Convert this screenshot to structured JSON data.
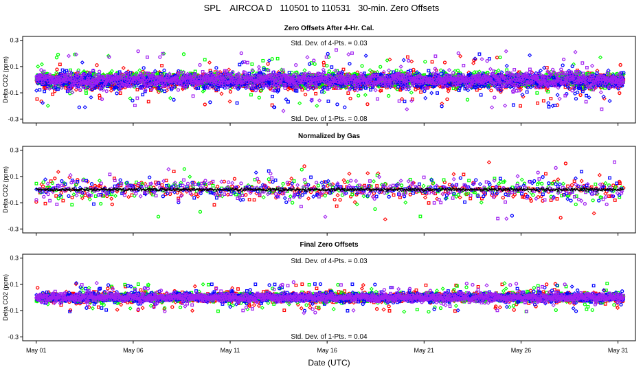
{
  "figure_title": "SPL    AIRCOA D   110501 to 110531   30-min. Zero Offsets",
  "colors": {
    "red": "#ff0000",
    "green": "#00ff00",
    "blue": "#0000ff",
    "violet": "#a020f0",
    "black": "#000000"
  },
  "chart_data": [
    {
      "type": "scatter",
      "title": "Zero Offsets After 4-Hr. Cal.",
      "xlabel": "",
      "ylabel": "Delta CO2 (ppm)",
      "xlim": [
        0.3,
        31.9
      ],
      "ylim": [
        -0.33,
        0.33
      ],
      "yticks": [
        -0.3,
        -0.1,
        0.1,
        0.3
      ],
      "yticklabels": [
        "-0.3",
        "-0.1",
        "0.1",
        "0.3"
      ],
      "annotation_top": "Std. Dev. of 4-Pts. =  0.03",
      "annotation_bottom": "Std. Dev. of 1-Pts. =  0.08",
      "series": [
        {
          "name": "red",
          "color": "#ff0000",
          "center": -0.01,
          "spread": 0.055,
          "points_per_day": 48,
          "max_abs": 0.2
        },
        {
          "name": "green",
          "color": "#00ff00",
          "center": 0.0,
          "spread": 0.05,
          "points_per_day": 48,
          "max_abs": 0.2
        },
        {
          "name": "blue",
          "color": "#0000ff",
          "center": -0.01,
          "spread": 0.055,
          "points_per_day": 48,
          "max_abs": 0.21
        },
        {
          "name": "violet",
          "color": "#a020f0",
          "center": 0.0,
          "spread": 0.05,
          "points_per_day": 48,
          "max_abs": 0.24
        }
      ]
    },
    {
      "type": "scatter",
      "title": "Normalized by Gas",
      "xlabel": "",
      "ylabel": "Delta CO2 (ppm)",
      "xlim": [
        0.3,
        31.9
      ],
      "ylim": [
        -0.33,
        0.33
      ],
      "yticks": [
        -0.3,
        -0.1,
        0.1,
        0.3
      ],
      "yticklabels": [
        "-0.3",
        "-0.1",
        "0.1",
        "0.3"
      ],
      "annotation_top": "",
      "annotation_bottom": "",
      "series": [
        {
          "name": "red",
          "color": "#ff0000",
          "center": 0.0,
          "spread": 0.075,
          "points_per_day": 10,
          "max_abs": 0.23
        },
        {
          "name": "green",
          "color": "#00ff00",
          "center": 0.0,
          "spread": 0.075,
          "points_per_day": 7,
          "max_abs": 0.23
        },
        {
          "name": "blue",
          "color": "#0000ff",
          "center": 0.0,
          "spread": 0.075,
          "points_per_day": 8,
          "max_abs": 0.23
        },
        {
          "name": "violet",
          "color": "#a020f0",
          "center": 0.0,
          "spread": 0.075,
          "points_per_day": 10,
          "max_abs": 0.24
        },
        {
          "name": "black",
          "color": "#000000",
          "center": 0.0,
          "spread": 0.01,
          "points_per_day": 48,
          "max_abs": 0.02
        }
      ]
    },
    {
      "type": "scatter",
      "title": "Final Zero Offsets",
      "xlabel": "Date (UTC)",
      "ylabel": "Delta CO2 (ppm)",
      "xlim": [
        0.3,
        31.9
      ],
      "ylim": [
        -0.33,
        0.33
      ],
      "yticks": [
        -0.3,
        -0.1,
        0.1,
        0.3
      ],
      "yticklabels": [
        "-0.3",
        "-0.1",
        "0.1",
        "0.3"
      ],
      "annotation_top": "Std. Dev. of 4-Pts. =  0.03",
      "annotation_bottom": "Std. Dev. of 1-Pts. =  0.04",
      "xticks": [
        1,
        6,
        11,
        16,
        21,
        26,
        31
      ],
      "xticklabels": [
        "May 01",
        "May 06",
        "May 11",
        "May 16",
        "May 21",
        "May 26",
        "May 31"
      ],
      "series": [
        {
          "name": "red",
          "color": "#ff0000",
          "center": 0.0,
          "spread": 0.03,
          "points_per_day": 48,
          "max_abs": 0.11
        },
        {
          "name": "green",
          "color": "#00ff00",
          "center": 0.0,
          "spread": 0.03,
          "points_per_day": 48,
          "max_abs": 0.11
        },
        {
          "name": "blue",
          "color": "#0000ff",
          "center": 0.0,
          "spread": 0.03,
          "points_per_day": 48,
          "max_abs": 0.11
        },
        {
          "name": "violet",
          "color": "#a020f0",
          "center": 0.0,
          "spread": 0.03,
          "points_per_day": 48,
          "max_abs": 0.12
        }
      ]
    }
  ]
}
